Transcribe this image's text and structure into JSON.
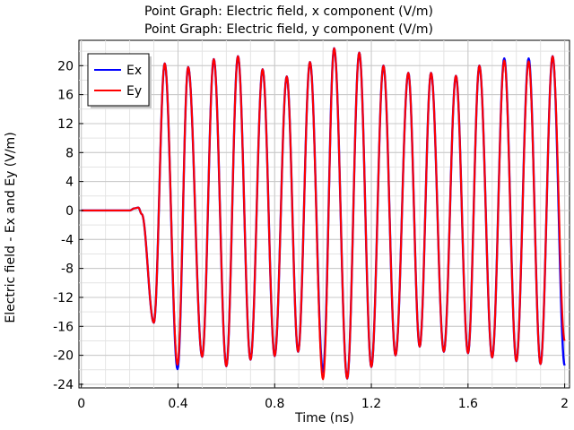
{
  "chart_data": {
    "type": "line",
    "title": "Point Graph: Electric field, x component (V/m)",
    "subtitle": "Point Graph: Electric field, y component (V/m)",
    "xlabel": "Time (ns)",
    "ylabel": "Electric field - Ex and Ey (V/m)",
    "xlim": [
      -0.01,
      2.02
    ],
    "ylim": [
      -24.5,
      23.5
    ],
    "x_ticks": [
      "0",
      "0.4",
      "0.8",
      "1.2",
      "1.6",
      "2"
    ],
    "x_tick_values": [
      0,
      0.4,
      0.8,
      1.2,
      1.6,
      2.0
    ],
    "y_ticks": [
      "20",
      "16",
      "12",
      "8",
      "4",
      "0",
      "-4",
      "-8",
      "-12",
      "-16",
      "-20",
      "-24"
    ],
    "y_tick_values": [
      20,
      16,
      12,
      8,
      4,
      0,
      -4,
      -8,
      -12,
      -16,
      -20,
      -24
    ],
    "grid": true,
    "legend_position": "top-left",
    "series": [
      {
        "name": "Ex",
        "color": "#0000ff",
        "points": [
          [
            0.0,
            0
          ],
          [
            0.2,
            0
          ],
          [
            0.22,
            0.3
          ],
          [
            0.236,
            0.4
          ],
          [
            0.25,
            -0.5
          ],
          [
            0.3,
            -15.5
          ],
          [
            0.345,
            20.3
          ],
          [
            0.398,
            -21.9
          ],
          [
            0.442,
            19.8
          ],
          [
            0.5,
            -20.2
          ],
          [
            0.548,
            20.9
          ],
          [
            0.6,
            -21.5
          ],
          [
            0.648,
            21.3
          ],
          [
            0.7,
            -20.6
          ],
          [
            0.75,
            19.5
          ],
          [
            0.8,
            -20.1
          ],
          [
            0.85,
            18.5
          ],
          [
            0.897,
            -19.5
          ],
          [
            0.946,
            20.5
          ],
          [
            1.0,
            -22.3
          ],
          [
            1.046,
            22.4
          ],
          [
            1.1,
            -23.2
          ],
          [
            1.15,
            21.8
          ],
          [
            1.2,
            -21.6
          ],
          [
            1.25,
            20.0
          ],
          [
            1.3,
            -20.0
          ],
          [
            1.353,
            19.0
          ],
          [
            1.4,
            -18.8
          ],
          [
            1.447,
            19.0
          ],
          [
            1.5,
            -19.5
          ],
          [
            1.55,
            18.6
          ],
          [
            1.6,
            -19.7
          ],
          [
            1.647,
            20.0
          ],
          [
            1.7,
            -20.3
          ],
          [
            1.75,
            21.0
          ],
          [
            1.8,
            -20.8
          ],
          [
            1.851,
            21.0
          ],
          [
            1.9,
            -21.2
          ],
          [
            1.95,
            21.3
          ],
          [
            2.0,
            -21.4
          ]
        ]
      },
      {
        "name": "Ey",
        "color": "#ff0000",
        "points": [
          [
            0.0,
            0
          ],
          [
            0.2,
            0
          ],
          [
            0.22,
            0.3
          ],
          [
            0.236,
            0.4
          ],
          [
            0.25,
            -0.5
          ],
          [
            0.3,
            -15.5
          ],
          [
            0.345,
            20.3
          ],
          [
            0.398,
            -21.3
          ],
          [
            0.442,
            19.8
          ],
          [
            0.5,
            -20.2
          ],
          [
            0.548,
            20.9
          ],
          [
            0.6,
            -21.5
          ],
          [
            0.648,
            21.3
          ],
          [
            0.7,
            -20.6
          ],
          [
            0.75,
            19.5
          ],
          [
            0.8,
            -20.1
          ],
          [
            0.85,
            18.5
          ],
          [
            0.897,
            -19.5
          ],
          [
            0.946,
            20.5
          ],
          [
            1.0,
            -23.3
          ],
          [
            1.046,
            22.4
          ],
          [
            1.1,
            -23.2
          ],
          [
            1.15,
            21.8
          ],
          [
            1.2,
            -21.6
          ],
          [
            1.25,
            20.0
          ],
          [
            1.3,
            -20.0
          ],
          [
            1.353,
            19.0
          ],
          [
            1.4,
            -18.8
          ],
          [
            1.447,
            19.0
          ],
          [
            1.5,
            -19.5
          ],
          [
            1.55,
            18.6
          ],
          [
            1.6,
            -19.7
          ],
          [
            1.647,
            20.0
          ],
          [
            1.7,
            -20.3
          ],
          [
            1.75,
            20.7
          ],
          [
            1.8,
            -20.8
          ],
          [
            1.851,
            20.6
          ],
          [
            1.9,
            -21.2
          ],
          [
            1.95,
            21.3
          ],
          [
            2.0,
            -18.0
          ]
        ]
      }
    ]
  }
}
